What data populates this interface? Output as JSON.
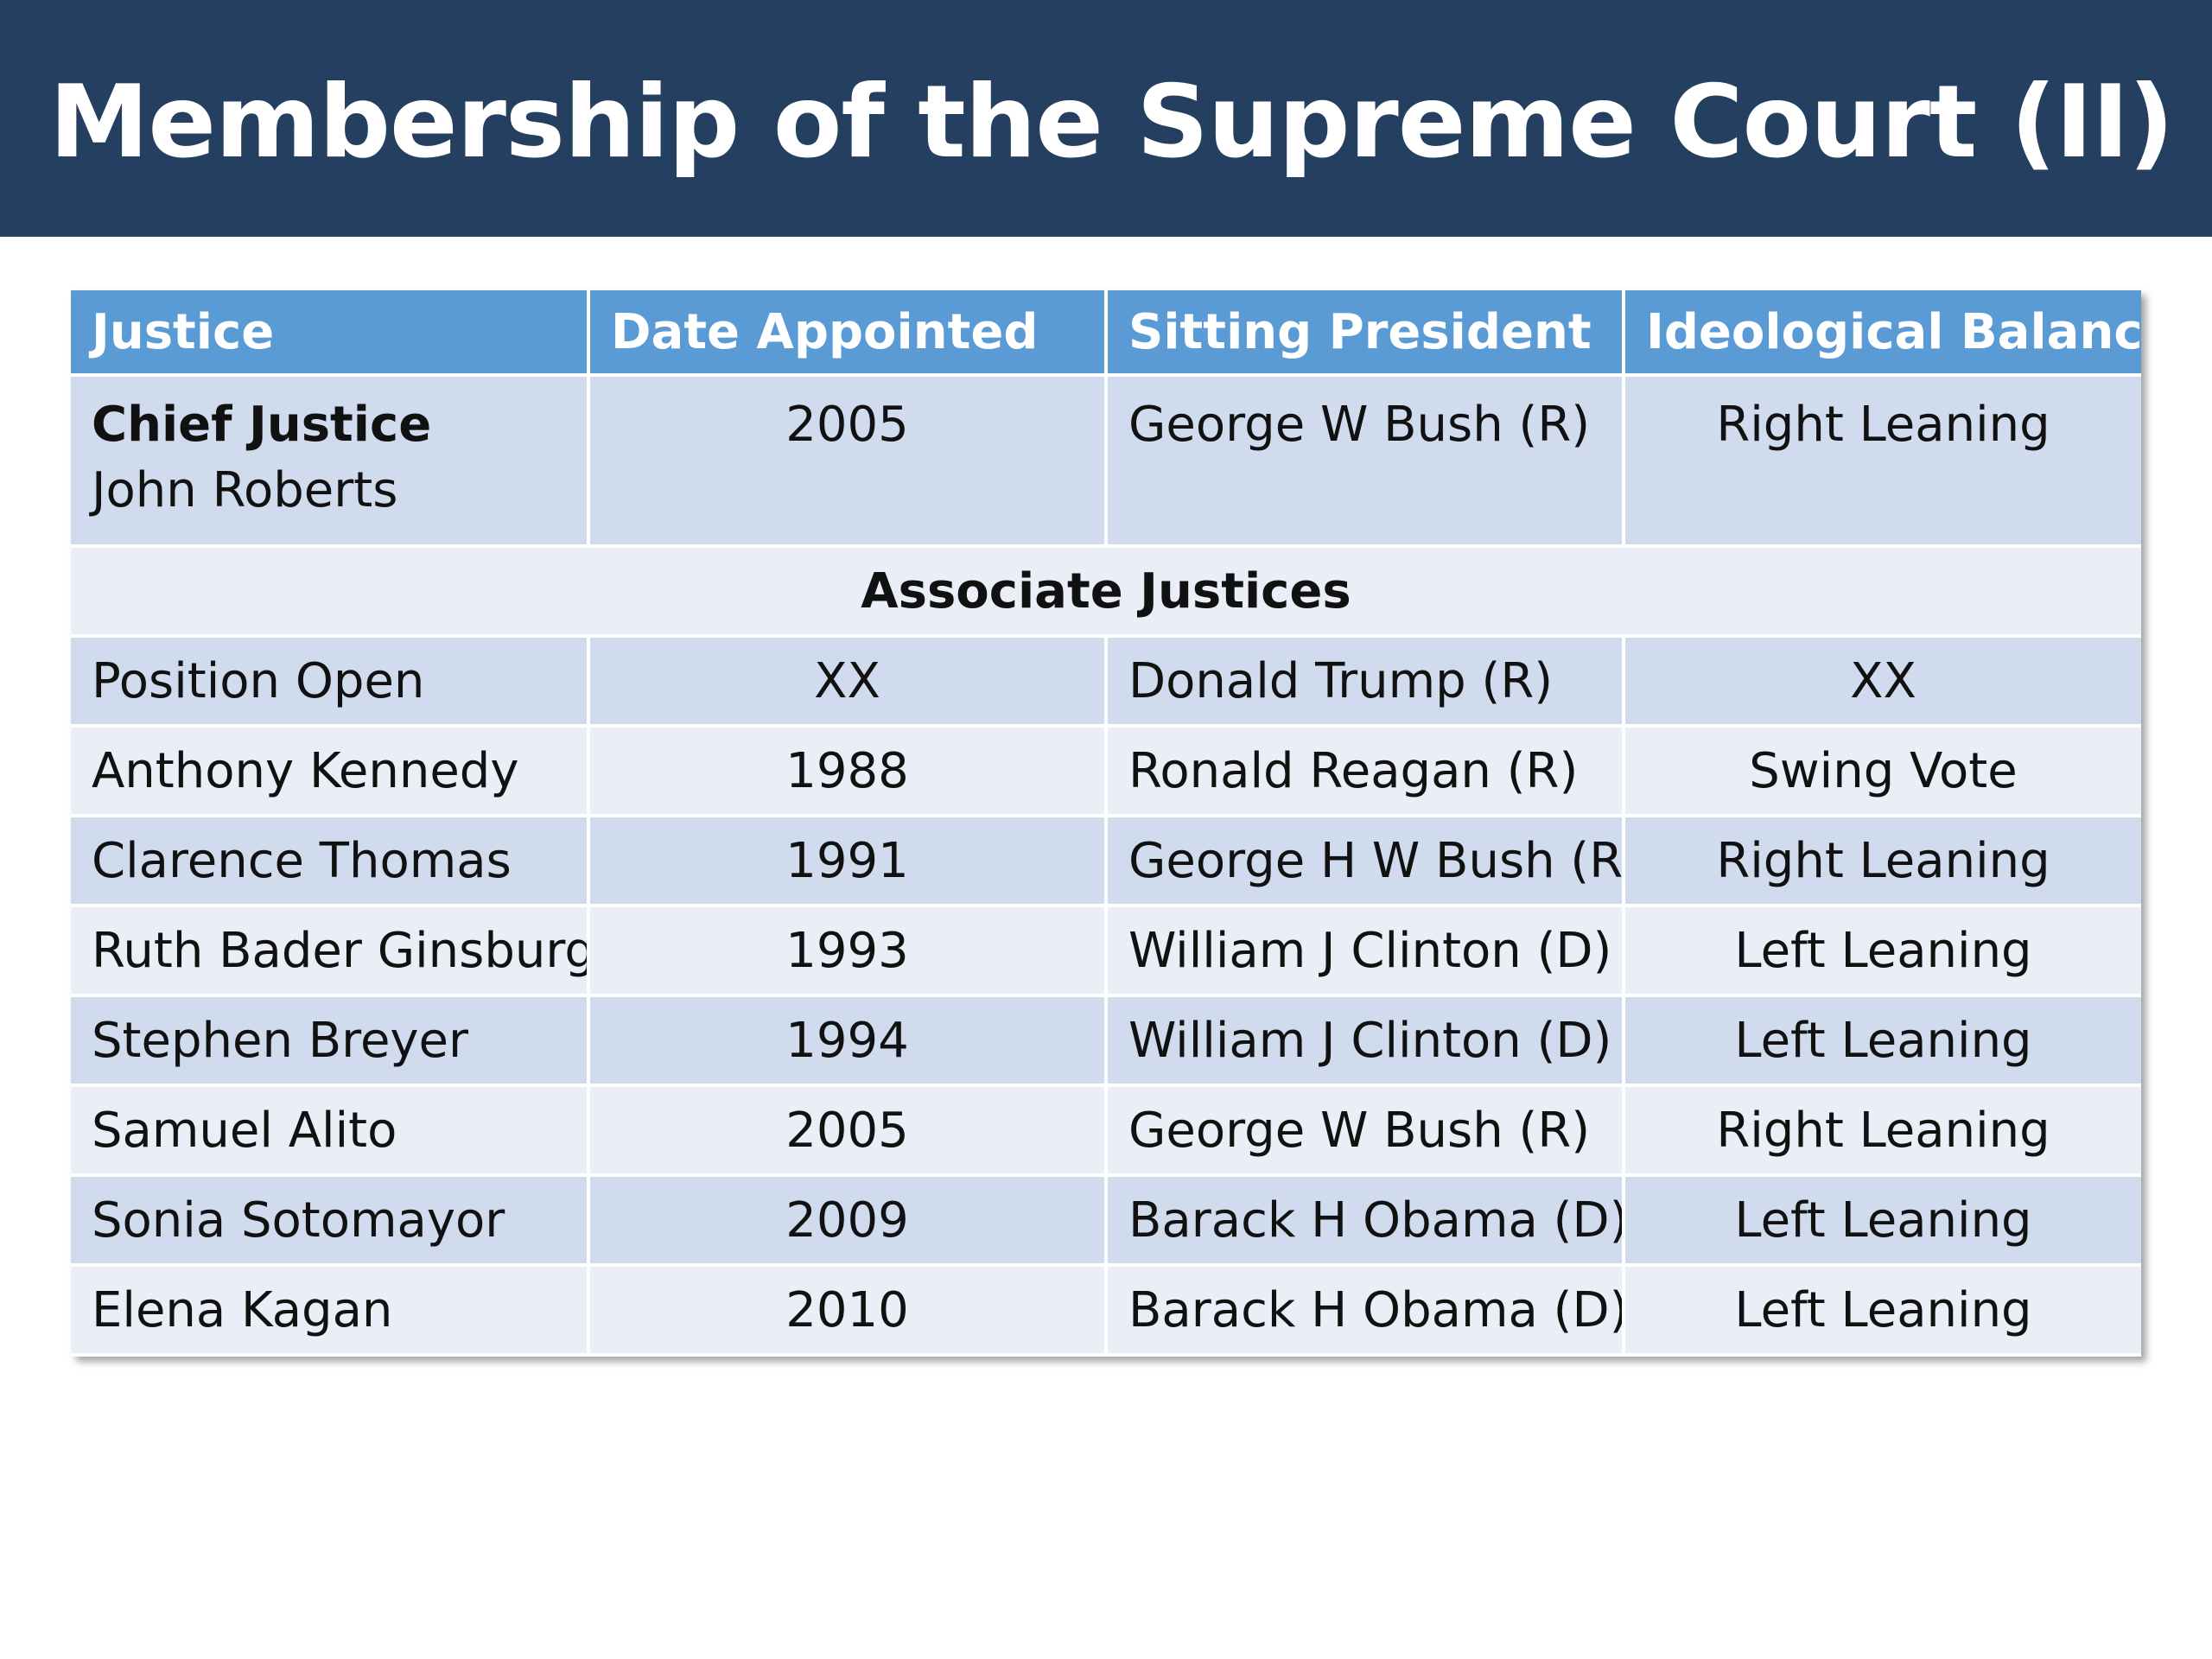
{
  "slide": {
    "title": "Membership of the Supreme Court (II)",
    "colors": {
      "title_bar": "#243f60",
      "header_row": "#5b9bd5",
      "row_dark": "#d0dcee",
      "row_light": "#e9eef7"
    }
  },
  "table": {
    "headers": [
      "Justice",
      "Date Appointed",
      "Sitting President",
      "Ideological Balance"
    ],
    "chief": {
      "role": "Chief Justice",
      "name": "John Roberts",
      "date": "2005",
      "president": "George W Bush (R)",
      "balance": "Right Leaning"
    },
    "section_label": "Associate Justices",
    "rows": [
      {
        "justice": "Position Open",
        "date": "XX",
        "president": "Donald Trump (R)",
        "balance": "XX"
      },
      {
        "justice": "Anthony Kennedy",
        "date": "1988",
        "president": "Ronald Reagan (R)",
        "balance": "Swing Vote"
      },
      {
        "justice": "Clarence Thomas",
        "date": "1991",
        "president": "George H W Bush (R)",
        "balance": "Right Leaning"
      },
      {
        "justice": "Ruth Bader Ginsburg",
        "date": "1993",
        "president": "William J Clinton (D)",
        "balance": "Left Leaning"
      },
      {
        "justice": "Stephen Breyer",
        "date": "1994",
        "president": "William J Clinton (D)",
        "balance": "Left Leaning"
      },
      {
        "justice": "Samuel Alito",
        "date": "2005",
        "president": "George W Bush (R)",
        "balance": "Right Leaning"
      },
      {
        "justice": "Sonia Sotomayor",
        "date": "2009",
        "president": "Barack H Obama (D)",
        "balance": "Left Leaning"
      },
      {
        "justice": "Elena Kagan",
        "date": "2010",
        "president": "Barack H Obama (D)",
        "balance": "Left Leaning"
      }
    ]
  }
}
